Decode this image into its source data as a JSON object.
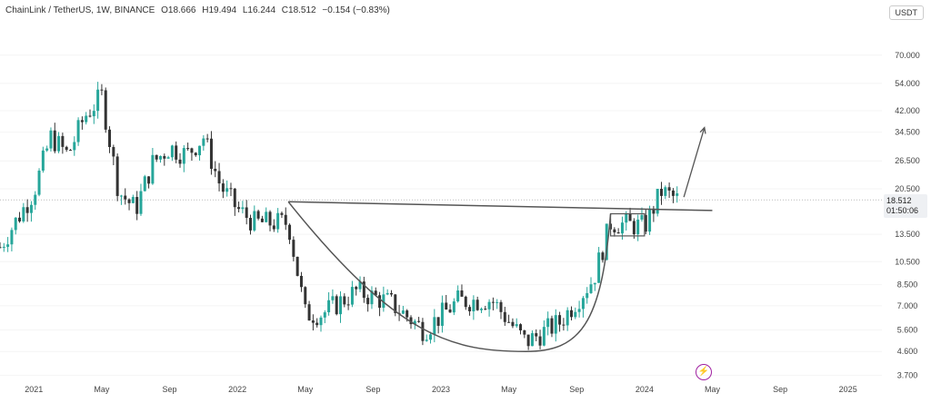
{
  "header": {
    "symbol": "ChainLink / TetherUS, 1W, BINANCE",
    "open": "O18.666",
    "high": "H19.494",
    "low": "L16.244",
    "close": "C18.512",
    "change": "−0.154 (−0.83%)"
  },
  "currency_button": "USDT",
  "price_tag": {
    "price": "18.512",
    "countdown": "01:50:06"
  },
  "bolt_icon": "lightning-icon",
  "colors": {
    "up": "#26a69a",
    "down": "#333333",
    "line": "#555555",
    "axis_text": "#444444"
  },
  "chart_data": {
    "type": "candlestick",
    "title": "",
    "xlabel": "",
    "ylabel": "",
    "y_scale": "log",
    "ylim": [
      3.5,
      100
    ],
    "y_ticks": [
      "70.000",
      "54.000",
      "42.000",
      "34.500",
      "26.500",
      "20.500",
      "13.500",
      "10.500",
      "8.500",
      "7.000",
      "5.600",
      "4.600",
      "3.700"
    ],
    "x_ticks": [
      "2021",
      "May",
      "Sep",
      "2022",
      "May",
      "Sep",
      "2023",
      "May",
      "Sep",
      "2024",
      "May",
      "Sep",
      "2025"
    ],
    "x_range": [
      "2020-11",
      "2025-03"
    ],
    "last_price": 18.512,
    "price_series": [
      {
        "date": "2020-11",
        "price": 12
      },
      {
        "date": "2021-01",
        "price": 20
      },
      {
        "date": "2021-02",
        "price": 33
      },
      {
        "date": "2021-03",
        "price": 28
      },
      {
        "date": "2021-04",
        "price": 40
      },
      {
        "date": "2021-05",
        "price": 48
      },
      {
        "date": "2021-06",
        "price": 20
      },
      {
        "date": "2021-07",
        "price": 17
      },
      {
        "date": "2021-08",
        "price": 26
      },
      {
        "date": "2021-09",
        "price": 30
      },
      {
        "date": "2021-10",
        "price": 28
      },
      {
        "date": "2021-11",
        "price": 33
      },
      {
        "date": "2021-12",
        "price": 21
      },
      {
        "date": "2022-01",
        "price": 17
      },
      {
        "date": "2022-02",
        "price": 15
      },
      {
        "date": "2022-03",
        "price": 15
      },
      {
        "date": "2022-04",
        "price": 15
      },
      {
        "date": "2022-05",
        "price": 6.5
      },
      {
        "date": "2022-06",
        "price": 6.5
      },
      {
        "date": "2022-08",
        "price": 8
      },
      {
        "date": "2022-10",
        "price": 7.2
      },
      {
        "date": "2022-12",
        "price": 5.6
      },
      {
        "date": "2023-02",
        "price": 7.3
      },
      {
        "date": "2023-04",
        "price": 7.4
      },
      {
        "date": "2023-06",
        "price": 5
      },
      {
        "date": "2023-08",
        "price": 6
      },
      {
        "date": "2023-10",
        "price": 9
      },
      {
        "date": "2023-11",
        "price": 15
      },
      {
        "date": "2024-01",
        "price": 14.5
      },
      {
        "date": "2024-02",
        "price": 20
      },
      {
        "date": "2024-03",
        "price": 18.5
      }
    ],
    "annotations": [
      {
        "type": "neckline",
        "from": {
          "date": "2022-04",
          "price": 18.2
        },
        "to": {
          "date": "2024-05",
          "price": 16.8
        }
      },
      {
        "type": "cup",
        "start": {
          "date": "2022-04",
          "price": 18.2
        },
        "bottom": {
          "date": "2023-06",
          "price": 4.6
        },
        "end": {
          "date": "2023-11",
          "price": 16.3
        }
      },
      {
        "type": "handle",
        "top": 16.3,
        "bottom": 13.3,
        "from": "2023-11",
        "to": "2024-01"
      },
      {
        "type": "arrow",
        "from": {
          "date": "2024-03",
          "price": 19
        },
        "to": {
          "date": "2024-04",
          "price": 36
        }
      }
    ]
  }
}
